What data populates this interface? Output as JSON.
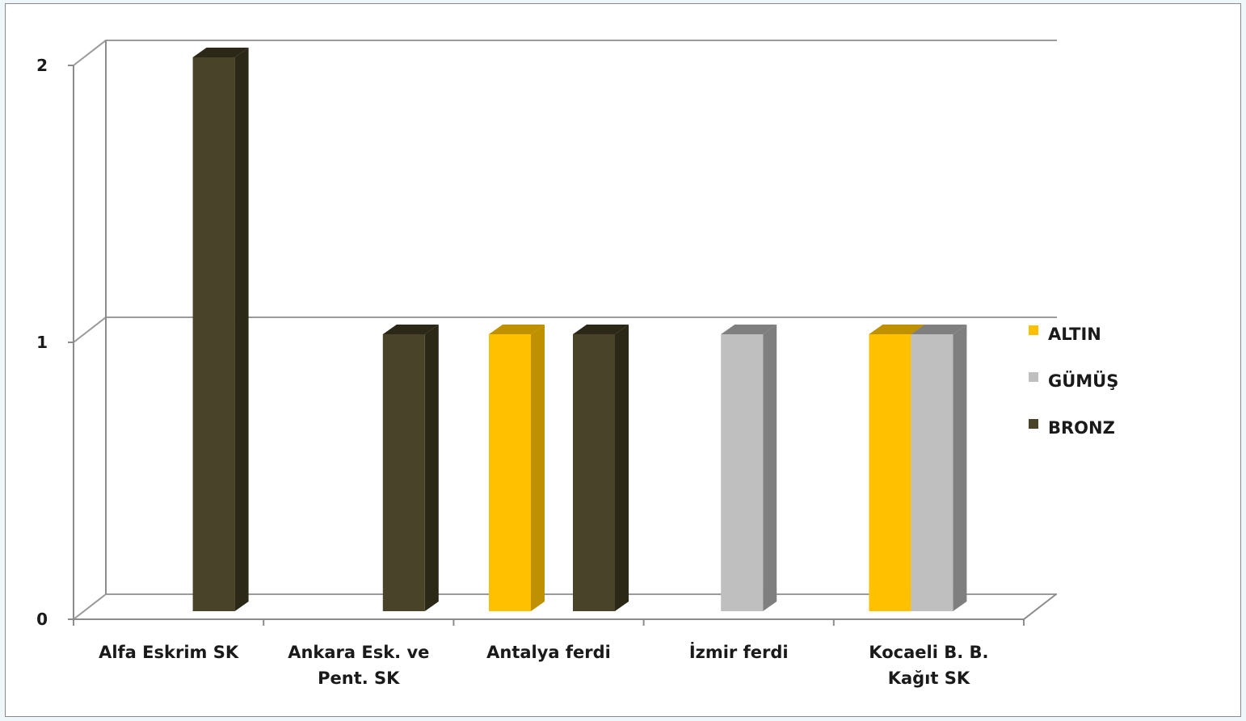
{
  "chart_data": {
    "type": "bar",
    "style": "3d-clustered-column",
    "title": "",
    "xlabel": "",
    "ylabel": "",
    "categories": [
      [
        "Alfa Eskrim SK"
      ],
      [
        "Ankara Esk. ve",
        "Pent. SK"
      ],
      [
        "Antalya ferdi"
      ],
      [
        "İzmir ferdi"
      ],
      [
        "Kocaeli B. B.",
        "Kağıt SK"
      ]
    ],
    "series": [
      {
        "name": "ALTIN",
        "color": "#ffc000",
        "side_color": "#bf9000",
        "values": [
          0,
          0,
          1,
          0,
          1
        ]
      },
      {
        "name": "GÜMÜŞ",
        "color": "#bfbfbf",
        "side_color": "#7f7f7f",
        "values": [
          0,
          0,
          0,
          1,
          1
        ]
      },
      {
        "name": "BRONZ",
        "color": "#494429",
        "side_color": "#2b2818",
        "values": [
          2,
          1,
          1,
          0,
          0
        ]
      }
    ],
    "ylim": [
      0,
      2
    ],
    "yticks": [
      "0",
      "1",
      "2"
    ],
    "grid": true,
    "legend": "right"
  }
}
